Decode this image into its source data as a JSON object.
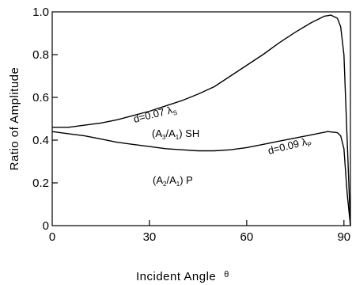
{
  "chart_data": {
    "type": "line",
    "xlabel": "Incident Angle",
    "xlabel_symbol": "θ",
    "ylabel": "Ratio of Amplitude",
    "xlim": [
      0,
      92
    ],
    "ylim": [
      0,
      1.0
    ],
    "xticks": [
      0,
      30,
      60,
      90
    ],
    "xtick_labels": [
      "0",
      "30",
      "60",
      "90"
    ],
    "yticks": [
      0,
      0.2,
      0.4,
      0.6,
      0.8,
      1.0
    ],
    "ytick_labels": [
      "0",
      "0.2",
      "0.4",
      "0.6",
      "0.8",
      "1.0"
    ],
    "grid": false,
    "series": [
      {
        "x": [
          0,
          5,
          10,
          15,
          20,
          25,
          30,
          35,
          40,
          45,
          50,
          55,
          60,
          65,
          70,
          75,
          80,
          84,
          86,
          88,
          89,
          90,
          91,
          92
        ],
        "y": [
          0.46,
          0.46,
          0.47,
          0.48,
          0.495,
          0.515,
          0.535,
          0.56,
          0.585,
          0.615,
          0.65,
          0.7,
          0.75,
          0.8,
          0.855,
          0.905,
          0.95,
          0.98,
          0.985,
          0.97,
          0.93,
          0.8,
          0.4,
          0.0
        ]
      },
      {
        "x": [
          0,
          5,
          10,
          15,
          20,
          25,
          30,
          35,
          40,
          45,
          50,
          55,
          60,
          65,
          70,
          75,
          80,
          85,
          88,
          89,
          90,
          91,
          92
        ],
        "y": [
          0.44,
          0.43,
          0.42,
          0.405,
          0.39,
          0.38,
          0.37,
          0.36,
          0.355,
          0.35,
          0.35,
          0.355,
          0.365,
          0.38,
          0.395,
          0.41,
          0.425,
          0.44,
          0.435,
          0.42,
          0.36,
          0.15,
          0.0
        ]
      }
    ],
    "annotations": [
      {
        "id": "sh_d",
        "prefix": "d=0.07 λ",
        "sub": "S"
      },
      {
        "id": "sh_label",
        "prefix": "(A",
        "sub1": "3",
        "mid": "/A",
        "sub2": "1",
        "suffix": ") SH"
      },
      {
        "id": "p_d",
        "prefix": "d=0.09 λ",
        "sub": "P"
      },
      {
        "id": "p_label",
        "prefix": "(A",
        "sub1": "2",
        "mid": "/A",
        "sub2": "1",
        "suffix": ") P"
      }
    ]
  }
}
